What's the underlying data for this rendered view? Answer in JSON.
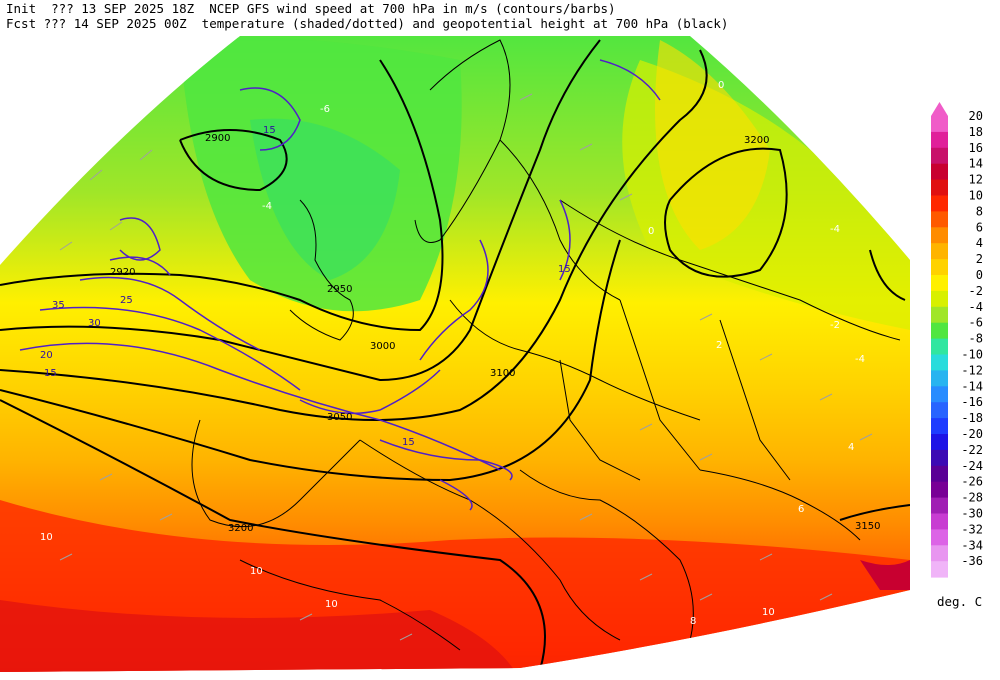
{
  "header": {
    "line1": "Init  ??? 13 SEP 2025 18Z  NCEP GFS wind speed at 700 hPa in m/s (contours/barbs)",
    "line2": "Fcst ??? 14 SEP 2025 00Z  temperature (shaded/dotted) and geopotential height at 700 hPa (black)"
  },
  "colorbar": {
    "unit": "deg. C",
    "levels": [
      {
        "label": "20",
        "color": "#f05cc8"
      },
      {
        "label": "18",
        "color": "#e0209a"
      },
      {
        "label": "16",
        "color": "#c8106a"
      },
      {
        "label": "14",
        "color": "#c80030"
      },
      {
        "label": "12",
        "color": "#e01010"
      },
      {
        "label": "10",
        "color": "#ff2800"
      },
      {
        "label": "8",
        "color": "#ff5a00"
      },
      {
        "label": "6",
        "color": "#ff8c00"
      },
      {
        "label": "4",
        "color": "#ffb400"
      },
      {
        "label": "2",
        "color": "#ffd200"
      },
      {
        "label": "0",
        "color": "#fff000"
      },
      {
        "label": "-2",
        "color": "#d8f000"
      },
      {
        "label": "-4",
        "color": "#a0e628"
      },
      {
        "label": "-6",
        "color": "#50e640"
      },
      {
        "label": "-8",
        "color": "#30e6a0"
      },
      {
        "label": "-10",
        "color": "#28dcdc"
      },
      {
        "label": "-12",
        "color": "#28b4f0"
      },
      {
        "label": "-14",
        "color": "#288cff"
      },
      {
        "label": "-16",
        "color": "#2864ff"
      },
      {
        "label": "-18",
        "color": "#1e3cff"
      },
      {
        "label": "-20",
        "color": "#1e14e6"
      },
      {
        "label": "-22",
        "color": "#3c0ab4"
      },
      {
        "label": "-24",
        "color": "#5a0096"
      },
      {
        "label": "-26",
        "color": "#780096"
      },
      {
        "label": "-28",
        "color": "#a01eb4"
      },
      {
        "label": "-30",
        "color": "#c83cd2"
      },
      {
        "label": "-32",
        "color": "#dc64e6"
      },
      {
        "label": "-34",
        "color": "#e896f0"
      },
      {
        "label": "-36",
        "color": "#f0b4f8"
      }
    ]
  },
  "map_labels": {
    "heights": [
      "2900",
      "2920",
      "2950",
      "3000",
      "3050",
      "3100",
      "3150",
      "3200"
    ],
    "wind_speeds": [
      "15",
      "20",
      "25",
      "30",
      "35"
    ],
    "temperatures": [
      "-6",
      "-4",
      "-2",
      "0",
      "2",
      "4",
      "6",
      "8",
      "10"
    ]
  },
  "colors": {
    "height_contour": "#000000",
    "wind_contour": "#5020c8",
    "barb": "#a0a0a0",
    "coastline": "#000000"
  }
}
